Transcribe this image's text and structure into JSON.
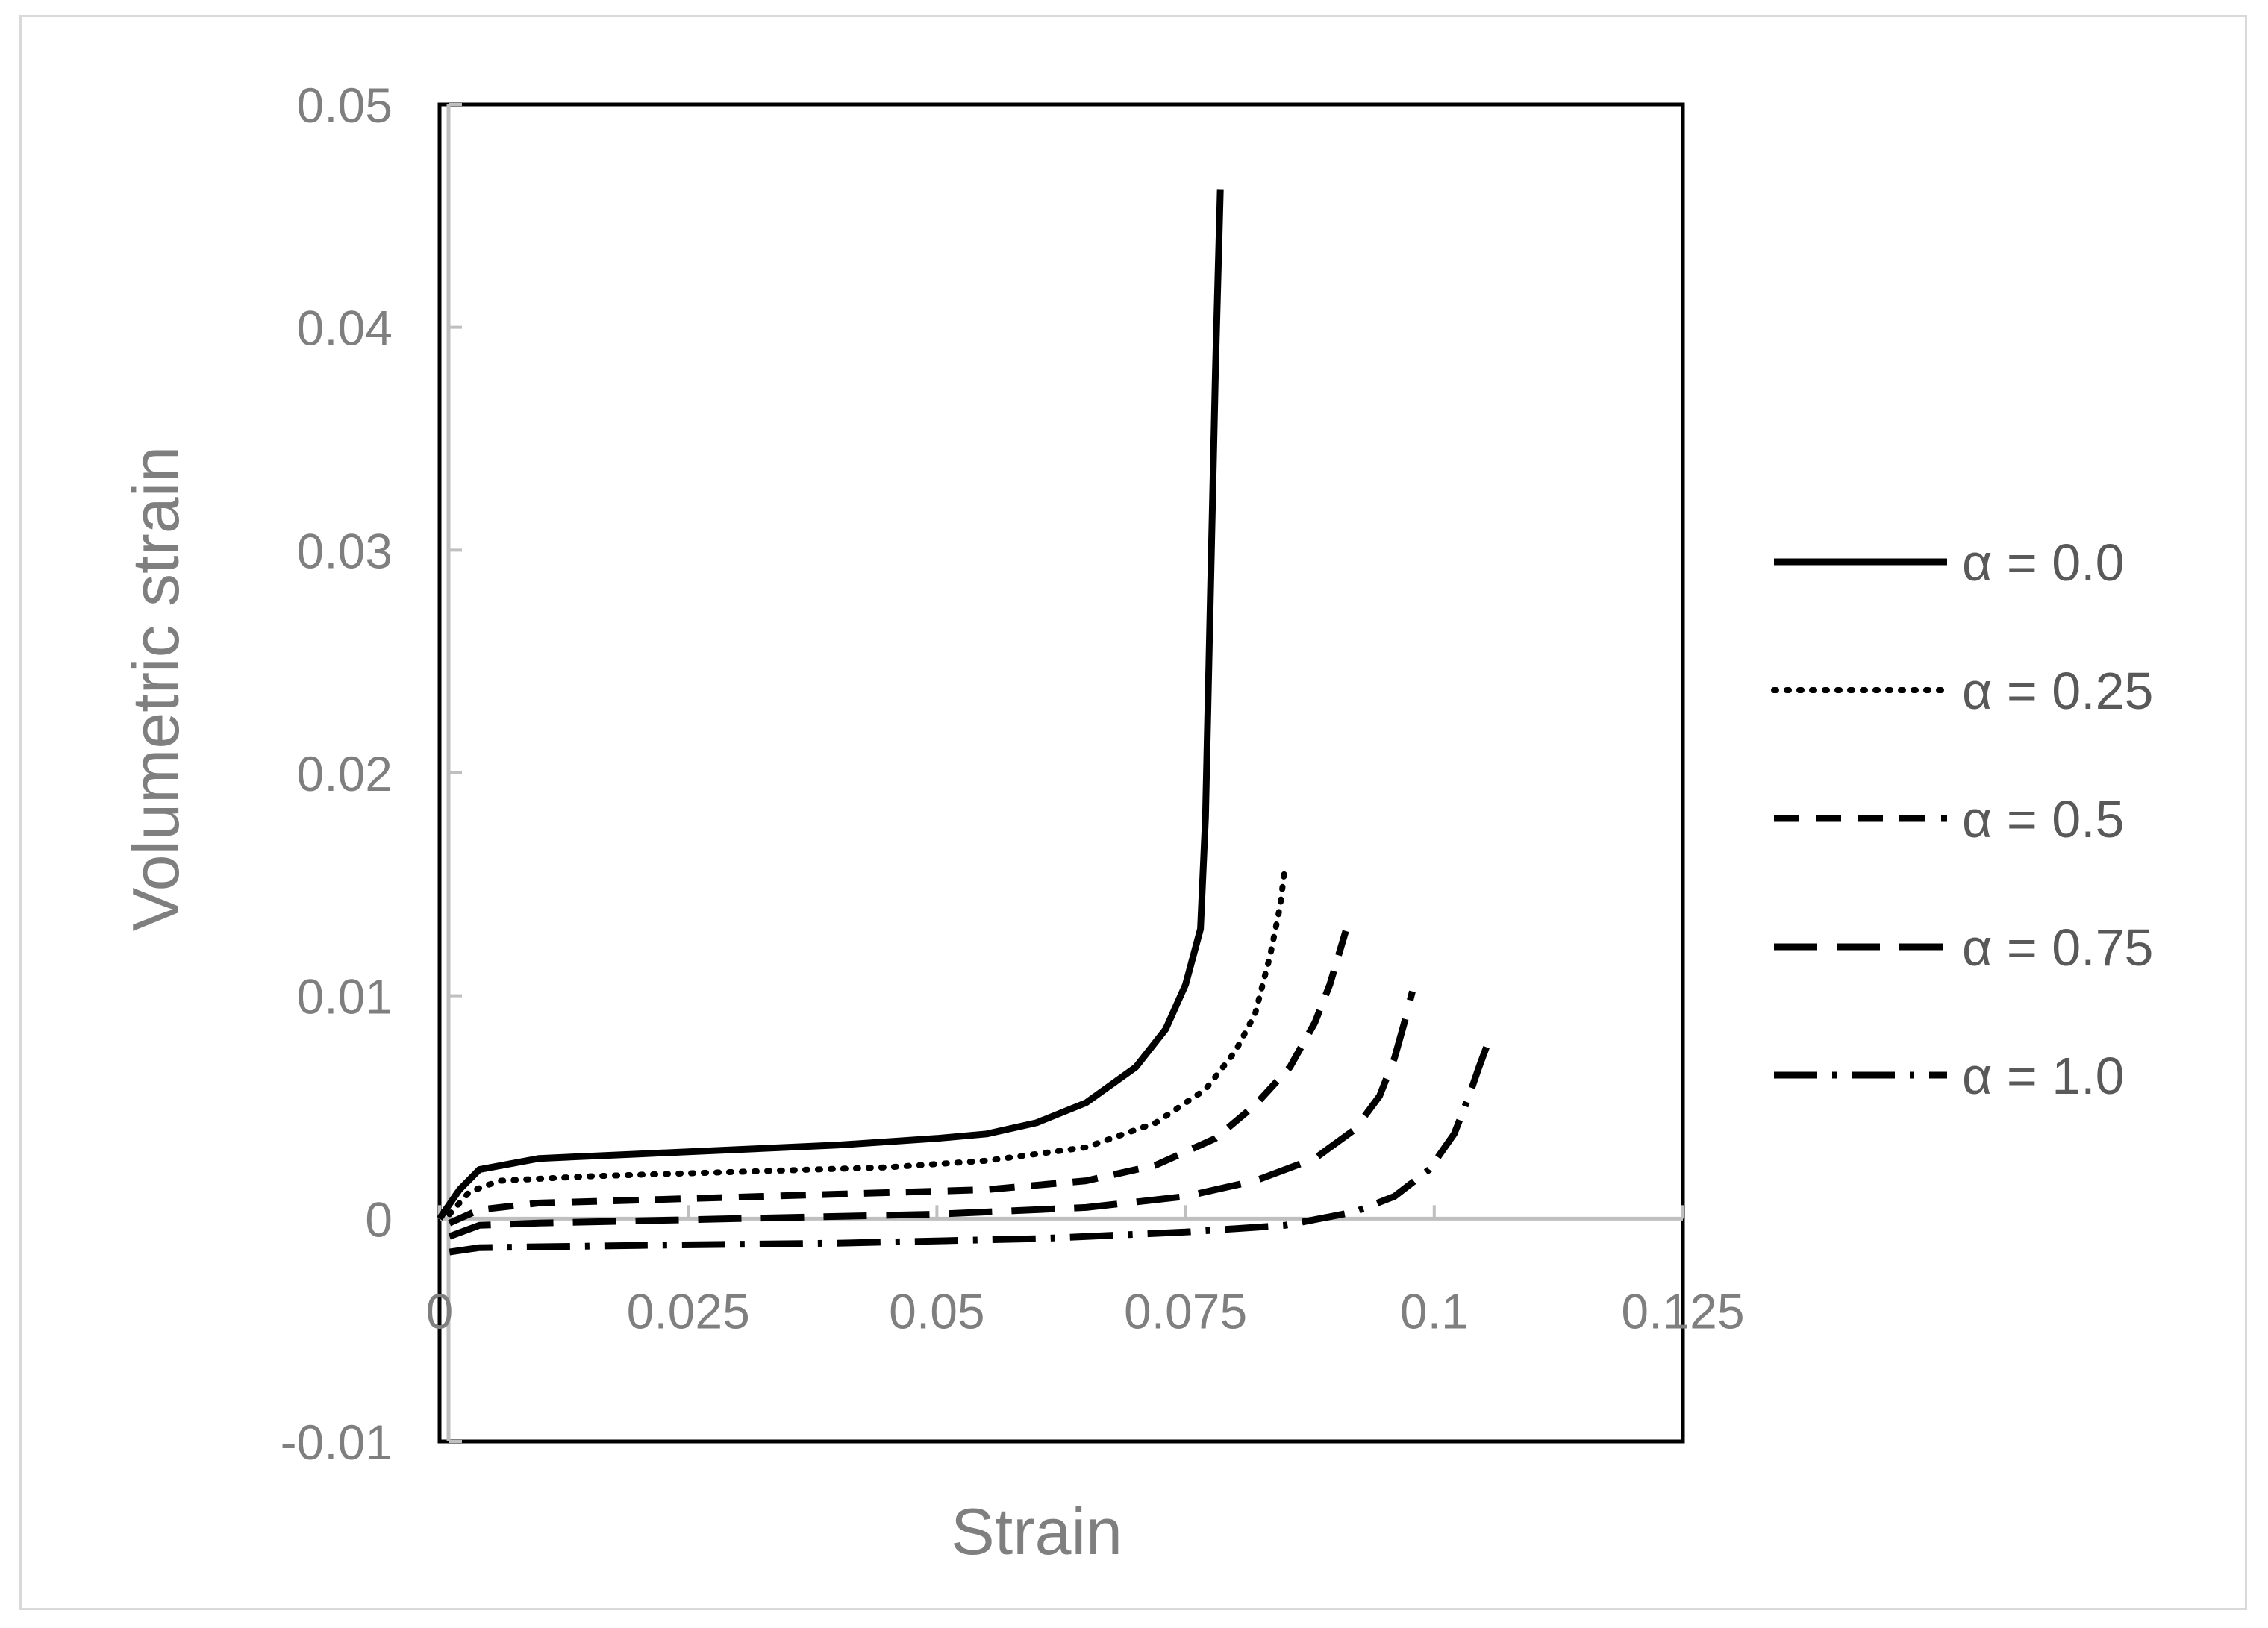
{
  "chart_data": {
    "type": "line",
    "title": "",
    "xlabel": "Strain",
    "ylabel": "Volumetric strain",
    "xlim": [
      0,
      0.125
    ],
    "ylim": [
      -0.01,
      0.05
    ],
    "x_ticks": [
      "0",
      "0.025",
      "0.05",
      "0.075",
      "0.1",
      "0.125"
    ],
    "y_ticks": [
      "-0.01",
      "0",
      "0.01",
      "0.02",
      "0.03",
      "0.04",
      "0.05"
    ],
    "x_tick_values": [
      0,
      0.025,
      0.05,
      0.075,
      0.1,
      0.125
    ],
    "y_tick_values": [
      -0.01,
      0,
      0.01,
      0.02,
      0.03,
      0.04,
      0.05
    ],
    "grid": false,
    "legend_position": "right",
    "line_color": "#000000",
    "series": [
      {
        "name": "α = 0.0",
        "style": "solid",
        "points": [
          [
            0,
            0
          ],
          [
            0.002,
            0.0013
          ],
          [
            0.004,
            0.0022
          ],
          [
            0.01,
            0.0027
          ],
          [
            0.02,
            0.0029
          ],
          [
            0.03,
            0.0031
          ],
          [
            0.04,
            0.0033
          ],
          [
            0.05,
            0.0036
          ],
          [
            0.055,
            0.0038
          ],
          [
            0.06,
            0.0043
          ],
          [
            0.065,
            0.0052
          ],
          [
            0.07,
            0.0068
          ],
          [
            0.073,
            0.0085
          ],
          [
            0.075,
            0.0105
          ],
          [
            0.0765,
            0.013
          ],
          [
            0.077,
            0.018
          ],
          [
            0.0775,
            0.028
          ],
          [
            0.078,
            0.038
          ],
          [
            0.0785,
            0.0462
          ]
        ]
      },
      {
        "name": "α = 0.25",
        "style": "dotted",
        "points": [
          [
            0.001,
            0.0002
          ],
          [
            0.003,
            0.0012
          ],
          [
            0.006,
            0.0017
          ],
          [
            0.015,
            0.0019
          ],
          [
            0.03,
            0.0021
          ],
          [
            0.045,
            0.0023
          ],
          [
            0.055,
            0.0026
          ],
          [
            0.065,
            0.0032
          ],
          [
            0.072,
            0.0043
          ],
          [
            0.077,
            0.0058
          ],
          [
            0.08,
            0.0075
          ],
          [
            0.082,
            0.0092
          ],
          [
            0.0835,
            0.0118
          ],
          [
            0.0845,
            0.014
          ],
          [
            0.085,
            0.0158
          ]
        ]
      },
      {
        "name": "α = 0.5",
        "style": "dashed",
        "points": [
          [
            0.001,
            -0.0002
          ],
          [
            0.004,
            0.0004
          ],
          [
            0.01,
            0.0007
          ],
          [
            0.025,
            0.0009
          ],
          [
            0.04,
            0.0011
          ],
          [
            0.055,
            0.0013
          ],
          [
            0.065,
            0.0017
          ],
          [
            0.072,
            0.0024
          ],
          [
            0.078,
            0.0036
          ],
          [
            0.082,
            0.0051
          ],
          [
            0.0855,
            0.0068
          ],
          [
            0.088,
            0.0088
          ],
          [
            0.0895,
            0.0105
          ],
          [
            0.0905,
            0.012
          ],
          [
            0.0915,
            0.0135
          ]
        ]
      },
      {
        "name": "α = 0.75",
        "style": "long-dash",
        "points": [
          [
            0.001,
            -0.0008
          ],
          [
            0.004,
            -0.0003
          ],
          [
            0.01,
            -0.0002
          ],
          [
            0.03,
            0
          ],
          [
            0.05,
            0.0002
          ],
          [
            0.065,
            0.0005
          ],
          [
            0.075,
            0.001
          ],
          [
            0.082,
            0.0017
          ],
          [
            0.088,
            0.0027
          ],
          [
            0.092,
            0.004
          ],
          [
            0.0945,
            0.0055
          ],
          [
            0.096,
            0.0072
          ],
          [
            0.097,
            0.0088
          ],
          [
            0.0978,
            0.0102
          ]
        ]
      },
      {
        "name": "α = 1.0",
        "style": "dash-dot",
        "points": [
          [
            0.001,
            -0.0015
          ],
          [
            0.004,
            -0.0013
          ],
          [
            0.02,
            -0.0012
          ],
          [
            0.04,
            -0.0011
          ],
          [
            0.06,
            -0.0009
          ],
          [
            0.075,
            -0.0006
          ],
          [
            0.085,
            -0.0003
          ],
          [
            0.092,
            0.0003
          ],
          [
            0.096,
            0.001
          ],
          [
            0.0995,
            0.0022
          ],
          [
            0.102,
            0.0038
          ],
          [
            0.1035,
            0.0055
          ],
          [
            0.1045,
            0.0068
          ],
          [
            0.1055,
            0.008
          ]
        ]
      }
    ]
  }
}
